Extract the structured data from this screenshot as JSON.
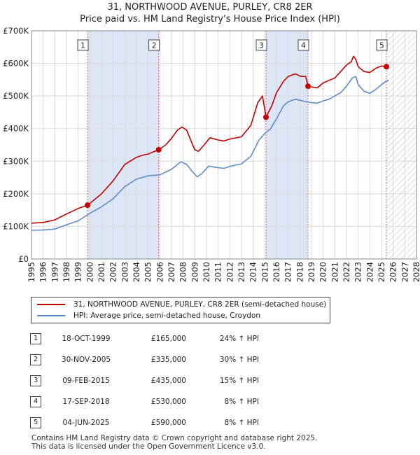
{
  "header": {
    "title": "31, NORTHWOOD AVENUE, PURLEY, CR8 2ER",
    "subtitle": "Price paid vs. HM Land Registry's House Price Index (HPI)"
  },
  "colors": {
    "property": "#c00000",
    "hpi": "#5b8ccc",
    "band": "#dde6f7",
    "marker_line": "#e06060",
    "grid": "#d8d8d8"
  },
  "chart_data": {
    "type": "line",
    "title": "31, NORTHWOOD AVENUE, PURLEY, CR8 2ER",
    "subtitle": "Price paid vs. HM Land Registry's House Price Index (HPI)",
    "xlim": [
      1995,
      2028
    ],
    "ylim": [
      0,
      700000
    ],
    "x_ticks": [
      1995,
      1996,
      1997,
      1998,
      1999,
      2000,
      2001,
      2002,
      2003,
      2004,
      2005,
      2006,
      2007,
      2008,
      2009,
      2010,
      2011,
      2012,
      2013,
      2014,
      2015,
      2016,
      2017,
      2018,
      2019,
      2020,
      2021,
      2022,
      2023,
      2024,
      2025,
      2026,
      2027,
      2028
    ],
    "y_ticks": [
      0,
      100000,
      200000,
      300000,
      400000,
      500000,
      600000,
      700000
    ],
    "y_tick_labels": [
      "£0",
      "£100K",
      "£200K",
      "£300K",
      "£400K",
      "£500K",
      "£600K",
      "£700K"
    ],
    "hatch_from": 2025.42,
    "series": [
      {
        "name": "31, NORTHWOOD AVENUE, PURLEY, CR8 2ER (semi-detached house)",
        "color": "#c00000",
        "points": [
          [
            1995.0,
            110000
          ],
          [
            1996.0,
            112000
          ],
          [
            1997.0,
            120000
          ],
          [
            1998.0,
            138000
          ],
          [
            1999.0,
            155000
          ],
          [
            1999.8,
            165000
          ],
          [
            2000.5,
            185000
          ],
          [
            2001.0,
            200000
          ],
          [
            2002.0,
            240000
          ],
          [
            2003.0,
            290000
          ],
          [
            2004.0,
            312000
          ],
          [
            2004.5,
            318000
          ],
          [
            2005.0,
            322000
          ],
          [
            2005.9,
            335000
          ],
          [
            2006.5,
            350000
          ],
          [
            2007.0,
            370000
          ],
          [
            2007.5,
            395000
          ],
          [
            2007.9,
            405000
          ],
          [
            2008.3,
            395000
          ],
          [
            2008.7,
            360000
          ],
          [
            2009.0,
            335000
          ],
          [
            2009.3,
            330000
          ],
          [
            2009.8,
            350000
          ],
          [
            2010.3,
            372000
          ],
          [
            2011.0,
            365000
          ],
          [
            2011.5,
            362000
          ],
          [
            2012.0,
            368000
          ],
          [
            2013.0,
            375000
          ],
          [
            2013.8,
            410000
          ],
          [
            2014.4,
            480000
          ],
          [
            2014.8,
            500000
          ],
          [
            2015.1,
            435000
          ],
          [
            2015.6,
            470000
          ],
          [
            2016.0,
            510000
          ],
          [
            2016.6,
            545000
          ],
          [
            2017.0,
            560000
          ],
          [
            2017.6,
            568000
          ],
          [
            2018.1,
            560000
          ],
          [
            2018.5,
            560000
          ],
          [
            2018.7,
            530000
          ],
          [
            2019.0,
            528000
          ],
          [
            2019.5,
            525000
          ],
          [
            2020.0,
            540000
          ],
          [
            2020.5,
            548000
          ],
          [
            2021.0,
            555000
          ],
          [
            2021.5,
            575000
          ],
          [
            2022.0,
            595000
          ],
          [
            2022.4,
            605000
          ],
          [
            2022.6,
            622000
          ],
          [
            2022.8,
            612000
          ],
          [
            2023.0,
            590000
          ],
          [
            2023.5,
            575000
          ],
          [
            2024.0,
            572000
          ],
          [
            2024.5,
            585000
          ],
          [
            2025.0,
            592000
          ],
          [
            2025.42,
            590000
          ],
          [
            2025.6,
            595000
          ]
        ]
      },
      {
        "name": "HPI: Average price, semi-detached house, Croydon",
        "color": "#5b8ccc",
        "points": [
          [
            1995.0,
            88000
          ],
          [
            1996.0,
            89000
          ],
          [
            1997.0,
            92000
          ],
          [
            1998.0,
            105000
          ],
          [
            1999.0,
            117000
          ],
          [
            2000.0,
            140000
          ],
          [
            2001.0,
            160000
          ],
          [
            2002.0,
            185000
          ],
          [
            2003.0,
            222000
          ],
          [
            2004.0,
            245000
          ],
          [
            2005.0,
            255000
          ],
          [
            2006.0,
            258000
          ],
          [
            2007.0,
            275000
          ],
          [
            2007.8,
            298000
          ],
          [
            2008.3,
            290000
          ],
          [
            2008.8,
            268000
          ],
          [
            2009.2,
            252000
          ],
          [
            2009.6,
            262000
          ],
          [
            2010.2,
            285000
          ],
          [
            2011.0,
            280000
          ],
          [
            2011.5,
            278000
          ],
          [
            2012.0,
            284000
          ],
          [
            2013.0,
            292000
          ],
          [
            2013.8,
            315000
          ],
          [
            2014.5,
            365000
          ],
          [
            2015.0,
            385000
          ],
          [
            2015.5,
            400000
          ],
          [
            2016.0,
            430000
          ],
          [
            2016.6,
            470000
          ],
          [
            2017.0,
            482000
          ],
          [
            2017.6,
            490000
          ],
          [
            2018.0,
            487000
          ],
          [
            2018.6,
            482000
          ],
          [
            2019.0,
            480000
          ],
          [
            2019.5,
            478000
          ],
          [
            2020.0,
            485000
          ],
          [
            2020.5,
            490000
          ],
          [
            2021.0,
            500000
          ],
          [
            2021.5,
            510000
          ],
          [
            2022.0,
            530000
          ],
          [
            2022.5,
            555000
          ],
          [
            2022.8,
            560000
          ],
          [
            2023.0,
            535000
          ],
          [
            2023.5,
            515000
          ],
          [
            2024.0,
            508000
          ],
          [
            2024.5,
            520000
          ],
          [
            2025.0,
            535000
          ],
          [
            2025.42,
            546000
          ],
          [
            2025.6,
            548000
          ]
        ]
      }
    ],
    "bands": [
      [
        1999.8,
        2005.9
      ],
      [
        2015.1,
        2018.7
      ]
    ],
    "sale_markers": [
      {
        "label": "1",
        "x": 1999.8,
        "y": 165000
      },
      {
        "label": "2",
        "x": 2005.9,
        "y": 335000
      },
      {
        "label": "3",
        "x": 2015.1,
        "y": 435000
      },
      {
        "label": "4",
        "x": 2018.7,
        "y": 530000
      },
      {
        "label": "5",
        "x": 2025.42,
        "y": 590000
      }
    ]
  },
  "legend": {
    "property_label": "31, NORTHWOOD AVENUE, PURLEY, CR8 2ER (semi-detached house)",
    "hpi_label": "HPI: Average price, semi-detached house, Croydon"
  },
  "sales": [
    {
      "num": "1",
      "date": "18-OCT-1999",
      "price": "£165,000",
      "hpi": "24% ↑ HPI"
    },
    {
      "num": "2",
      "date": "30-NOV-2005",
      "price": "£335,000",
      "hpi": "30% ↑ HPI"
    },
    {
      "num": "3",
      "date": "09-FEB-2015",
      "price": "£435,000",
      "hpi": "15% ↑ HPI"
    },
    {
      "num": "4",
      "date": "17-SEP-2018",
      "price": "£530,000",
      "hpi": "8% ↑ HPI"
    },
    {
      "num": "5",
      "date": "04-JUN-2025",
      "price": "£590,000",
      "hpi": "8% ↑ HPI"
    }
  ],
  "footer": {
    "line1": "Contains HM Land Registry data © Crown copyright and database right 2025.",
    "line2": "This data is licensed under the Open Government Licence v3.0."
  }
}
